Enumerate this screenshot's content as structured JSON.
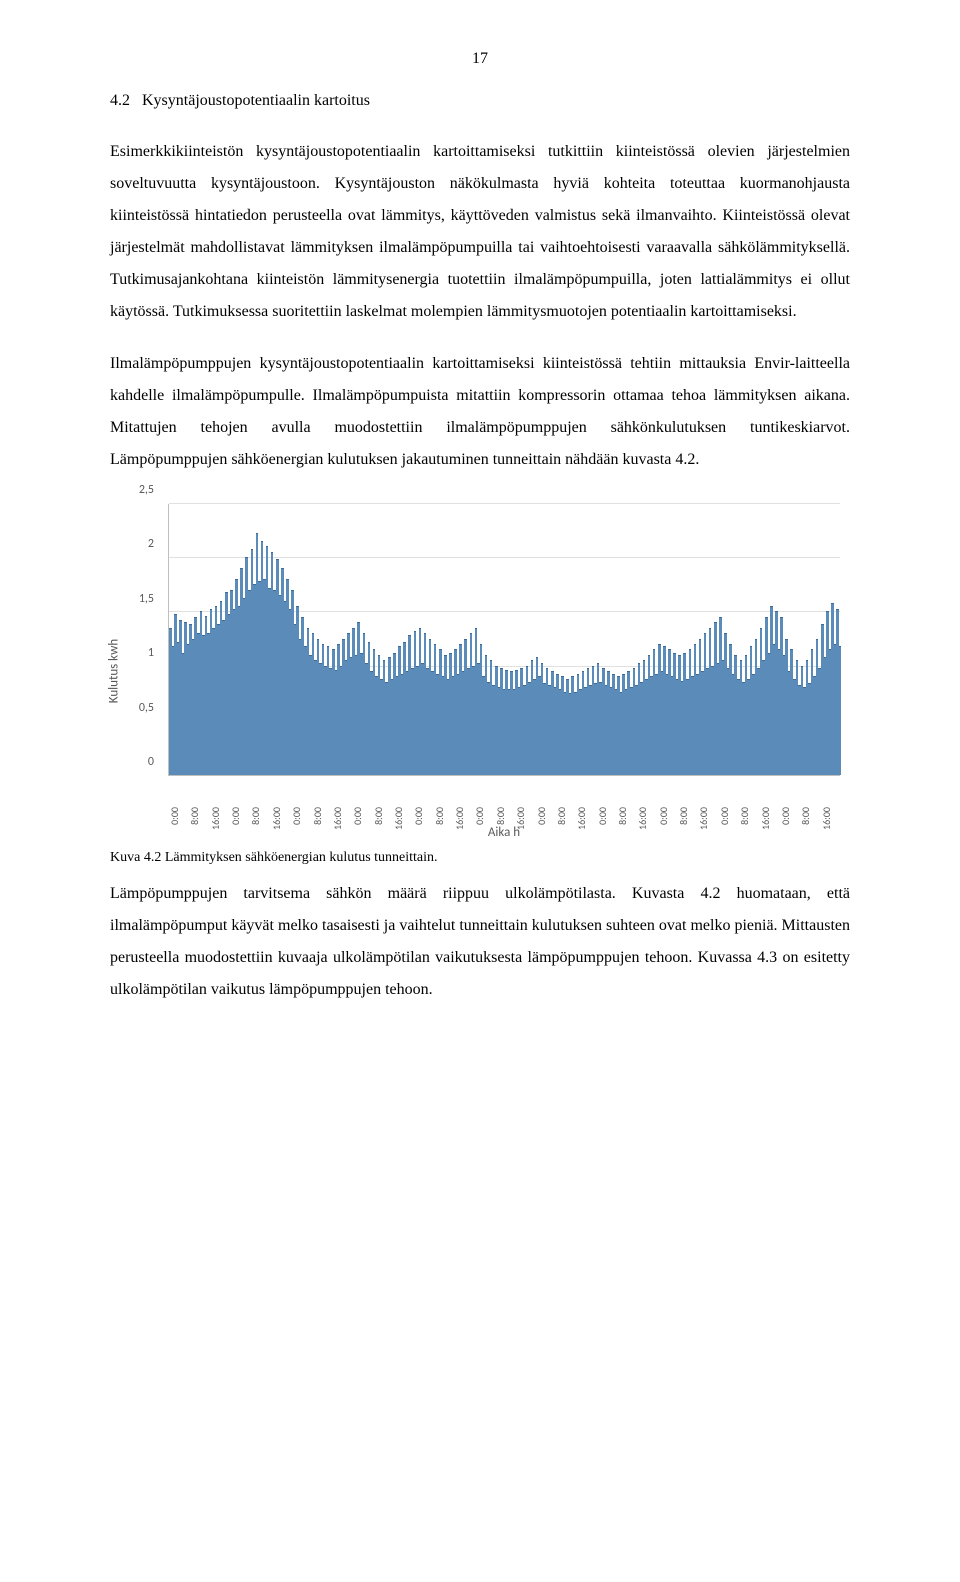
{
  "page_number": "17",
  "heading_number": "4.2",
  "heading_text": "Kysyntäjoustopotentiaalin kartoitus",
  "para1": "Esimerkkikiinteistön kysyntäjoustopotentiaalin kartoittamiseksi tutkittiin kiinteistössä olevien järjestelmien soveltuvuutta kysyntäjoustoon. Kysyntäjouston näkökulmasta hyviä kohteita toteuttaa kuormanohjausta kiinteistössä hintatiedon perusteella ovat lämmitys, käyttöveden valmistus sekä ilmanvaihto. Kiinteistössä olevat järjestelmät mahdollistavat lämmityksen ilmalämpöpumpuilla tai vaihtoehtoisesti varaavalla sähkölämmityksellä. Tutkimusajankohtana kiinteistön lämmitysenergia tuotettiin ilmalämpöpumpuilla, joten lattialämmitys ei ollut käytössä. Tutkimuksessa suoritettiin laskelmat molempien lämmitysmuotojen potentiaalin kartoittamiseksi.",
  "para2": "Ilmalämpöpumppujen kysyntäjoustopotentiaalin kartoittamiseksi kiinteistössä tehtiin mittauksia Envir-laitteella kahdelle ilmalämpöpumpulle. Ilmalämpöpumpuista mitattiin kompressorin ottamaa tehoa lämmityksen aikana. Mitattujen tehojen avulla muodostettiin ilmalämpöpumppujen sähkönkulutuksen tuntikeskiarvot. Lämpöpumppujen sähköenergian kulutuksen jakautuminen tunneittain nähdään kuvasta 4.2.",
  "figure_caption": "Kuva 4.2 Lämmityksen sähköenergian kulutus tunneittain.",
  "para3": "Lämpöpumppujen tarvitsema sähkön määrä riippuu ulkolämpötilasta. Kuvasta 4.2 huomataan, että ilmalämpöpumput käyvät melko tasaisesti ja vaihtelut tunneittain kulutuksen suhteen ovat melko pieniä. Mittausten perusteella muodostettiin kuvaaja ulkolämpötilan vaikutuksesta lämpöpumppujen tehoon. Kuvassa 4.3 on esitetty ulkolämpötilan vaikutus lämpöpumppujen tehoon.",
  "chart": {
    "type": "bar",
    "ylabel": "Kulutus kwh",
    "xlabel": "Aika h",
    "ylim": [
      0,
      2.5
    ],
    "ytick_step": 0.5,
    "yticks": [
      "0",
      "0,5",
      "1",
      "1,5",
      "2",
      "2,5"
    ],
    "background_color": "#ffffff",
    "grid_color": "#e0e0e0",
    "bar_color": "#5b8bb8",
    "bar_border_color": "#3d6a96",
    "axis_color": "#bfbfbf",
    "tick_font_color": "#595959",
    "tick_fontsize": 12,
    "label_fontsize": 13,
    "xticks": [
      "0:00",
      "8:00",
      "16:00",
      "0:00",
      "8:00",
      "16:00",
      "0:00",
      "8:00",
      "16:00",
      "0:00",
      "8:00",
      "16:00",
      "0:00",
      "8:00",
      "16:00",
      "0:00",
      "8:00",
      "16:00",
      "0:00",
      "8:00",
      "16:00",
      "0:00",
      "8:00",
      "16:00",
      "0:00",
      "8:00",
      "16:00",
      "0:00",
      "8:00",
      "16:00",
      "0:00",
      "8:00",
      "16:00"
    ],
    "values": [
      1.35,
      1.18,
      1.48,
      1.22,
      1.42,
      1.12,
      1.4,
      1.2,
      1.38,
      1.25,
      1.45,
      1.3,
      1.5,
      1.28,
      1.46,
      1.3,
      1.52,
      1.35,
      1.55,
      1.38,
      1.6,
      1.42,
      1.68,
      1.48,
      1.7,
      1.52,
      1.8,
      1.55,
      1.9,
      1.62,
      2.0,
      1.7,
      2.08,
      1.75,
      2.22,
      1.78,
      2.15,
      1.8,
      2.1,
      1.72,
      2.05,
      1.7,
      1.98,
      1.65,
      1.9,
      1.6,
      1.8,
      1.52,
      1.7,
      1.38,
      1.55,
      1.25,
      1.45,
      1.18,
      1.35,
      1.1,
      1.3,
      1.05,
      1.25,
      1.02,
      1.2,
      1.0,
      1.18,
      0.98,
      1.15,
      0.96,
      1.2,
      1.0,
      1.25,
      1.05,
      1.3,
      1.08,
      1.35,
      1.1,
      1.4,
      1.12,
      1.3,
      1.02,
      1.22,
      0.95,
      1.15,
      0.9,
      1.1,
      0.88,
      1.05,
      0.85,
      1.08,
      0.88,
      1.12,
      0.9,
      1.18,
      0.92,
      1.22,
      0.95,
      1.28,
      0.98,
      1.32,
      1.0,
      1.35,
      1.02,
      1.3,
      0.98,
      1.25,
      0.95,
      1.2,
      0.92,
      1.15,
      0.9,
      1.1,
      0.88,
      1.12,
      0.9,
      1.15,
      0.92,
      1.2,
      0.95,
      1.25,
      0.98,
      1.3,
      1.0,
      1.35,
      1.02,
      1.2,
      0.9,
      1.1,
      0.85,
      1.05,
      0.82,
      1.0,
      0.8,
      0.98,
      0.78,
      0.96,
      0.78,
      0.95,
      0.78,
      0.96,
      0.8,
      0.98,
      0.82,
      1.0,
      0.85,
      1.05,
      0.88,
      1.08,
      0.9,
      1.02,
      0.84,
      0.98,
      0.82,
      0.95,
      0.8,
      0.92,
      0.78,
      0.9,
      0.76,
      0.88,
      0.75,
      0.9,
      0.76,
      0.92,
      0.78,
      0.95,
      0.8,
      0.98,
      0.82,
      1.0,
      0.84,
      1.02,
      0.85,
      0.98,
      0.82,
      0.95,
      0.8,
      0.92,
      0.78,
      0.9,
      0.76,
      0.92,
      0.78,
      0.95,
      0.8,
      0.98,
      0.82,
      1.02,
      0.85,
      1.05,
      0.88,
      1.1,
      0.9,
      1.15,
      0.92,
      1.2,
      0.95,
      1.18,
      0.92,
      1.15,
      0.9,
      1.12,
      0.88,
      1.1,
      0.86,
      1.12,
      0.88,
      1.15,
      0.9,
      1.2,
      0.92,
      1.25,
      0.95,
      1.3,
      0.98,
      1.35,
      1.0,
      1.4,
      1.02,
      1.45,
      1.05,
      1.3,
      0.98,
      1.2,
      0.92,
      1.1,
      0.88,
      1.05,
      0.85,
      1.1,
      0.88,
      1.18,
      0.92,
      1.25,
      0.98,
      1.35,
      1.05,
      1.45,
      1.12,
      1.55,
      1.2,
      1.5,
      1.15,
      1.45,
      1.1,
      1.25,
      0.95,
      1.15,
      0.88,
      1.05,
      0.82,
      1.0,
      0.8,
      1.05,
      0.84,
      1.15,
      0.9,
      1.25,
      0.98,
      1.38,
      1.08,
      1.5,
      1.15,
      1.58,
      1.2,
      1.52,
      1.18
    ]
  }
}
